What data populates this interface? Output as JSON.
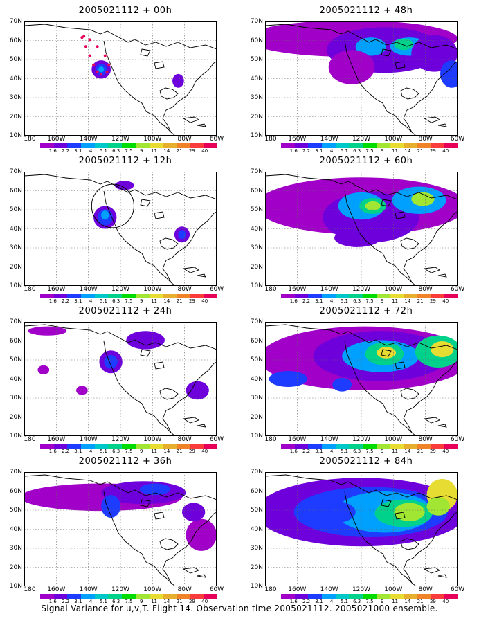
{
  "panels": [
    {
      "title": "2005021112 + 00h"
    },
    {
      "title": "2005021112 + 48h"
    },
    {
      "title": "2005021112 + 12h"
    },
    {
      "title": "2005021112 + 60h"
    },
    {
      "title": "2005021112 + 24h"
    },
    {
      "title": "2005021112 + 72h"
    },
    {
      "title": "2005021112 + 36h"
    },
    {
      "title": "2005021112 + 84h"
    }
  ],
  "lat_labels": [
    "70N",
    "60N",
    "50N",
    "40N",
    "30N",
    "20N",
    "10N"
  ],
  "lon_labels": [
    "180",
    "160W",
    "140W",
    "120W",
    "100W",
    "80W",
    "60W"
  ],
  "colorbar": {
    "labels": [
      "1.6",
      "2.2",
      "3.1",
      "4",
      "5.1",
      "6.3",
      "7.5",
      "9",
      "11",
      "14",
      "21",
      "29",
      "40"
    ],
    "colors": [
      "#a000c8",
      "#6e00dc",
      "#1e3cff",
      "#00a0ff",
      "#00c8c8",
      "#00d28c",
      "#00dc00",
      "#a0e632",
      "#e6dc32",
      "#e6af2d",
      "#f08228",
      "#fa3c3c",
      "#e6005a"
    ]
  },
  "caption": "Signal Variance for u,v,T. Flight 14. Observation time 2005021112. 2005021000 ensemble.",
  "blob_colors": {
    "purple": "#a000c8",
    "violet": "#6e00dc",
    "blue": "#1e3cff",
    "lightblue": "#00a0ff",
    "cyan": "#00c8c8",
    "teal": "#00d28c",
    "green": "#00dc00",
    "lime": "#a0e632",
    "yellow": "#e6dc32",
    "magenta": "#e6005a"
  }
}
